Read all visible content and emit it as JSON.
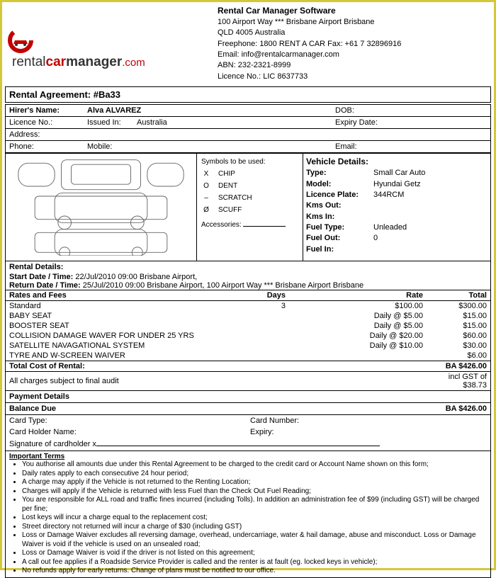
{
  "company": {
    "software_name": "Rental Car Manager Software",
    "address1": "100 Airport Way *** Brisbane Airport  Brisbane",
    "address2": "QLD 4005 Australia",
    "freephone": "Freephone: 1800 RENT A CAR    Fax:  +61 7 32896916",
    "email": "Email: info@rentalcarmanager.com",
    "abn": "ABN: 232-2321-8999",
    "licence": "Licence No.: LIC 8637733"
  },
  "logo": {
    "rental": "rental",
    "car": "car",
    "manager": "manager",
    "com": ".com"
  },
  "agreement": {
    "title": "Rental Agreement: #Ba33"
  },
  "hirer": {
    "name_label": "Hirer's Name:",
    "name_value": "Alva ALVAREZ",
    "dob_label": "DOB:",
    "licence_label": "Licence No.:",
    "issued_label": "Issued In:",
    "issued_value": "Australia",
    "expiry_label": "Expiry Date:",
    "address_label": "Address:",
    "phone_label": "Phone:",
    "mobile_label": "Mobile:",
    "email_label": "Email:"
  },
  "symbols": {
    "heading": "Symbols to be used:",
    "chip": "CHIP",
    "dent": "DENT",
    "scratch": "SCRATCH",
    "scuff": "SCUFF",
    "accessories": "Accessories:"
  },
  "vehicle": {
    "heading": "Vehicle Details:",
    "type_label": "Type:",
    "type_value": "Small Car Auto",
    "model_label": "Model:",
    "model_value": "Hyundai Getz",
    "plate_label": "Licence Plate:",
    "plate_value": "344RCM",
    "kmsout_label": "Kms Out:",
    "kmsin_label": "Kms In:",
    "fueltype_label": "Fuel Type:",
    "fueltype_value": "Unleaded",
    "fuelout_label": "Fuel Out:",
    "fuelout_value": "0",
    "fuelin_label": "Fuel In:"
  },
  "rental": {
    "heading": "Rental Details:",
    "start_label": "Start Date / Time:",
    "start_value": "22/Jul/2010 09:00  Brisbane Airport,",
    "return_label": "Return Date / Time:",
    "return_value": "25/Jul/2010 09:00  Brisbane Airport,    100 Airport Way *** Brisbane Airport Brisbane"
  },
  "charges": {
    "col_rates": "Rates and Fees",
    "col_days": "Days",
    "col_rate": "Rate",
    "col_total": "Total",
    "rows": [
      {
        "item": "Standard",
        "days": "3",
        "rate": "$100.00",
        "total": "$300.00"
      },
      {
        "item": "BABY SEAT",
        "days": "",
        "rate": "Daily @ $5.00",
        "total": "$15.00"
      },
      {
        "item": "BOOSTER SEAT",
        "days": "",
        "rate": "Daily @ $5.00",
        "total": "$15.00"
      },
      {
        "item": "COLLISION DAMAGE WAVER FOR UNDER 25 YRS",
        "days": "",
        "rate": "Daily @ $20.00",
        "total": "$60.00"
      },
      {
        "item": "SATELLITE NAVAGATIONAL SYSTEM",
        "days": "",
        "rate": "Daily @ $10.00",
        "total": "$30.00"
      },
      {
        "item": "TYRE AND W-SCREEN WAIVER",
        "days": "",
        "rate": "",
        "total": "$6.00"
      }
    ],
    "total_label": "Total Cost of Rental:",
    "total_value": "BA $426.00",
    "audit_note": "All charges subject to final audit",
    "gst_note": "incl GST of $38.73"
  },
  "payment": {
    "heading": "Payment Details",
    "balance_label": "Balance Due",
    "balance_value": "BA $426.00",
    "cardtype": "Card Type:",
    "cardno": "Card Number:",
    "holder": "Card Holder Name:",
    "expiry": "Expiry:",
    "signature": "Signature of cardholder x"
  },
  "terms": {
    "heading": "Important Terms",
    "items": [
      "You authorise all amounts due under this Rental Agreement to be charged to the credit card or Account Name shown on this form;",
      "Daily rates apply to each consecutive 24 hour period;",
      "A charge may apply if the Vehicle is not returned to the Renting Location;",
      "Charges will apply if the Vehicle is returned with less Fuel than the Check Out Fuel Reading;",
      "You are responsible for ALL road and traffic fines incurred (including Tolls). In addition an administration fee of $99 (including GST) will be charged per fine;",
      "Lost keys will incur a charge equal to the replacement cost;",
      "Street directory not returned will incur a charge of $30 (including GST)",
      "Loss or Damage Waiver excludes all reversing damage, overhead, undercarriage, water & hail damage, abuse and misconduct. Loss or Damage Waiver is void if the vehicle is used on an unsealed road;",
      "Loss or Damage Waiver is void if the driver is not listed on this agreement;",
      "A call out fee applies if a Roadside Service Provider is called and the renter is at fault (eg. locked keys in vehicle);",
      "No refunds apply for early returns. Change of plans must be notified to our office."
    ]
  }
}
